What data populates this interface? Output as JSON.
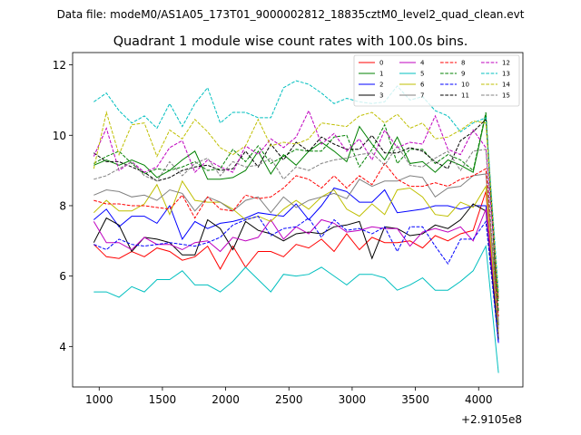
{
  "figure": {
    "suptitle": "Data file: modeM0/AS1A05_173T01_9000002812_18835cztM0_level2_quad_clean.evt",
    "offset_label": "+2.9105e8"
  },
  "chart_data": {
    "type": "line",
    "title": "Quadrant 1 module wise count rates with 100.0s bins.",
    "xlabel": "",
    "ylabel": "",
    "xlim": [
      790,
      4350
    ],
    "ylim": [
      2.85,
      12.35
    ],
    "x_offset": 291050000,
    "x_ticks": [
      1000,
      1500,
      2000,
      2500,
      3000,
      3500,
      4000
    ],
    "x_tick_labels": [
      "1000",
      "1500",
      "2000",
      "2500",
      "3000",
      "3500",
      "4000"
    ],
    "y_ticks": [
      4,
      6,
      8,
      10,
      12
    ],
    "y_tick_labels": [
      "4",
      "6",
      "8",
      "10",
      "12"
    ],
    "grid": false,
    "legend_position": "top-right",
    "x": [
      957,
      1057,
      1157,
      1257,
      1357,
      1457,
      1557,
      1657,
      1757,
      1857,
      1957,
      2057,
      2157,
      2257,
      2357,
      2457,
      2557,
      2657,
      2757,
      2857,
      2957,
      3057,
      3157,
      3257,
      3357,
      3457,
      3557,
      3657,
      3757,
      3857,
      3957,
      4057,
      4157
    ],
    "series": [
      {
        "name": "0",
        "color": "#ff0000",
        "dash": "solid",
        "values": [
          6.9,
          6.55,
          6.5,
          6.7,
          6.55,
          6.8,
          6.7,
          6.45,
          6.55,
          6.85,
          6.2,
          6.85,
          6.25,
          6.7,
          6.7,
          6.55,
          6.9,
          6.8,
          7.05,
          6.7,
          7.2,
          6.75,
          7.1,
          6.95,
          6.95,
          7.0,
          6.8,
          7.15,
          7.0,
          7.2,
          7.3,
          8.4,
          4.3
        ]
      },
      {
        "name": "1",
        "color": "#008000",
        "dash": "solid",
        "values": [
          9.15,
          9.3,
          9.15,
          9.3,
          9.15,
          8.8,
          9.0,
          9.3,
          9.55,
          8.75,
          8.75,
          8.8,
          9.0,
          9.55,
          8.9,
          9.45,
          9.15,
          9.55,
          9.8,
          9.55,
          9.25,
          10.25,
          9.75,
          9.3,
          9.95,
          9.2,
          9.25,
          8.95,
          9.3,
          9.15,
          8.95,
          10.6,
          4.6
        ]
      },
      {
        "name": "2",
        "color": "#0000ff",
        "dash": "solid",
        "values": [
          7.6,
          7.9,
          7.4,
          7.7,
          7.7,
          7.5,
          8.0,
          7.05,
          7.55,
          7.35,
          7.5,
          7.55,
          7.65,
          7.8,
          7.75,
          7.7,
          8.05,
          7.6,
          8.0,
          8.5,
          8.4,
          8.1,
          8.1,
          8.45,
          7.8,
          7.85,
          7.9,
          8.0,
          8.0,
          7.9,
          8.0,
          8.0,
          4.1
        ]
      },
      {
        "name": "3",
        "color": "#000000",
        "dash": "solid",
        "values": [
          6.95,
          7.65,
          7.45,
          6.7,
          7.1,
          7.05,
          6.95,
          6.6,
          6.6,
          7.6,
          7.35,
          6.75,
          7.55,
          7.3,
          7.2,
          7.0,
          7.2,
          7.25,
          7.2,
          7.4,
          7.45,
          7.55,
          6.5,
          7.4,
          7.35,
          7.15,
          7.2,
          7.45,
          7.35,
          7.6,
          8.05,
          7.85,
          4.2
        ]
      },
      {
        "name": "4",
        "color": "#bf00bf",
        "dash": "solid",
        "values": [
          7.55,
          6.95,
          6.95,
          6.75,
          7.1,
          6.9,
          6.9,
          6.75,
          6.95,
          7.0,
          6.7,
          7.1,
          7.0,
          7.1,
          7.6,
          7.05,
          7.4,
          7.2,
          7.6,
          7.5,
          7.25,
          7.3,
          7.4,
          7.35,
          7.35,
          6.85,
          7.25,
          7.35,
          7.25,
          7.4,
          7.0,
          7.9,
          4.5
        ]
      },
      {
        "name": "5",
        "color": "#00bfbf",
        "dash": "solid",
        "values": [
          5.55,
          5.55,
          5.4,
          5.7,
          5.55,
          5.9,
          5.9,
          6.15,
          5.75,
          5.75,
          5.55,
          5.85,
          6.25,
          5.9,
          5.55,
          6.05,
          6.0,
          6.05,
          6.25,
          6.0,
          5.75,
          6.05,
          6.05,
          5.95,
          5.6,
          5.75,
          5.95,
          5.6,
          5.6,
          5.85,
          6.15,
          6.85,
          3.25
        ]
      },
      {
        "name": "6",
        "color": "#bfbf00",
        "dash": "solid",
        "values": [
          7.8,
          8.15,
          7.85,
          7.85,
          8.05,
          8.6,
          7.75,
          8.7,
          8.15,
          8.1,
          8.1,
          7.9,
          7.6,
          7.7,
          7.55,
          7.9,
          8.15,
          7.9,
          8.25,
          8.45,
          7.9,
          7.7,
          8.05,
          7.75,
          8.45,
          8.5,
          8.25,
          7.75,
          7.7,
          8.1,
          7.95,
          8.55,
          4.4
        ]
      },
      {
        "name": "7",
        "color": "#808080",
        "dash": "solid",
        "values": [
          8.3,
          8.45,
          8.4,
          8.25,
          8.3,
          8.15,
          8.45,
          8.35,
          7.85,
          8.25,
          8.1,
          7.85,
          8.15,
          8.25,
          7.8,
          8.25,
          7.95,
          8.15,
          8.25,
          8.35,
          8.2,
          8.75,
          8.55,
          8.7,
          8.7,
          8.85,
          8.8,
          8.25,
          8.5,
          8.55,
          8.85,
          8.9,
          4.7
        ]
      },
      {
        "name": "8",
        "color": "#ff0000",
        "dash": "dashed",
        "values": [
          8.15,
          8.05,
          8.05,
          8.0,
          8.0,
          7.95,
          7.9,
          8.3,
          7.65,
          8.25,
          7.9,
          7.85,
          8.3,
          8.2,
          8.25,
          8.5,
          8.85,
          8.75,
          8.5,
          8.85,
          8.5,
          8.85,
          8.6,
          9.2,
          8.75,
          8.55,
          8.55,
          8.65,
          8.55,
          8.75,
          8.85,
          9.05,
          4.85
        ]
      },
      {
        "name": "9",
        "color": "#008000",
        "dash": "dashed",
        "values": [
          9.2,
          9.4,
          9.55,
          9.2,
          8.9,
          9.05,
          9.0,
          9.1,
          9.25,
          9.0,
          9.05,
          9.6,
          9.25,
          9.7,
          9.2,
          9.4,
          9.6,
          9.55,
          9.55,
          9.95,
          10.0,
          9.1,
          9.6,
          10.3,
          9.2,
          9.6,
          9.6,
          9.2,
          9.45,
          9.3,
          9.0,
          10.65,
          5.0
        ]
      },
      {
        "name": "10",
        "color": "#0000ff",
        "dash": "dashed",
        "values": [
          6.9,
          6.75,
          7.05,
          6.9,
          6.85,
          6.9,
          6.95,
          6.9,
          6.85,
          6.95,
          7.1,
          7.45,
          7.6,
          7.7,
          7.15,
          7.35,
          7.4,
          7.65,
          7.1,
          7.6,
          7.3,
          7.35,
          7.2,
          7.4,
          6.7,
          7.4,
          7.4,
          6.85,
          6.35,
          7.05,
          7.05,
          7.55,
          4.1
        ]
      },
      {
        "name": "11",
        "color": "#000000",
        "dash": "dashed",
        "values": [
          9.5,
          9.25,
          9.25,
          9.1,
          8.95,
          8.7,
          8.8,
          9.0,
          9.1,
          9.15,
          9.0,
          9.05,
          9.55,
          9.1,
          9.75,
          9.3,
          9.8,
          9.55,
          9.95,
          9.75,
          9.6,
          9.6,
          10.0,
          9.5,
          9.5,
          9.65,
          9.55,
          9.25,
          9.05,
          9.85,
          10.1,
          10.45,
          5.3
        ]
      },
      {
        "name": "12",
        "color": "#bf00bf",
        "dash": "dashed",
        "values": [
          9.4,
          10.2,
          9.0,
          9.25,
          8.95,
          9.1,
          9.65,
          9.85,
          8.95,
          9.3,
          9.1,
          8.95,
          9.7,
          9.45,
          9.9,
          9.65,
          9.95,
          10.7,
          9.75,
          10.05,
          9.55,
          9.9,
          9.3,
          10.15,
          9.65,
          9.8,
          9.75,
          10.55,
          9.6,
          9.45,
          10.15,
          9.65,
          5.4
        ]
      },
      {
        "name": "13",
        "color": "#00bfbf",
        "dash": "dashed",
        "values": [
          10.95,
          11.2,
          10.7,
          10.35,
          10.55,
          10.2,
          10.9,
          10.25,
          10.9,
          11.35,
          10.35,
          10.65,
          10.65,
          10.5,
          10.5,
          11.35,
          11.55,
          11.45,
          11.2,
          10.9,
          11.05,
          10.95,
          10.9,
          10.95,
          11.4,
          11.0,
          11.1,
          10.7,
          10.55,
          10.1,
          10.35,
          10.5,
          5.55
        ]
      },
      {
        "name": "14",
        "color": "#bfbf00",
        "dash": "dashed",
        "values": [
          9.05,
          10.65,
          9.45,
          10.3,
          10.35,
          9.4,
          10.15,
          9.9,
          10.45,
          10.1,
          9.65,
          9.45,
          9.7,
          10.45,
          9.7,
          9.8,
          9.75,
          9.9,
          10.35,
          10.3,
          10.25,
          10.55,
          10.65,
          10.35,
          10.6,
          10.2,
          10.35,
          9.9,
          9.95,
          10.15,
          10.4,
          10.35,
          5.35
        ]
      },
      {
        "name": "15",
        "color": "#808080",
        "dash": "dashed",
        "values": [
          8.75,
          8.85,
          9.05,
          9.25,
          8.85,
          8.7,
          9.25,
          8.85,
          9.2,
          9.35,
          8.85,
          9.25,
          9.1,
          9.15,
          9.35,
          8.75,
          9.1,
          9.0,
          9.2,
          9.3,
          9.35,
          9.45,
          9.5,
          9.15,
          9.7,
          9.15,
          9.1,
          9.35,
          9.55,
          9.0,
          9.55,
          9.6,
          4.3
        ]
      }
    ]
  }
}
